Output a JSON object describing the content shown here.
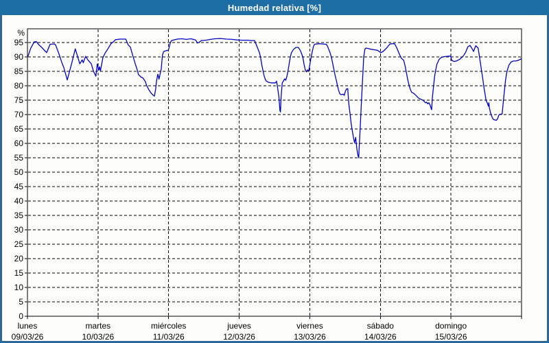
{
  "window": {
    "title": "Humedad relativa [%]"
  },
  "colors": {
    "titlebar_bg": "#1c6ea4",
    "titlebar_text": "#ffffff",
    "frame_border": "#2a689c",
    "page_bg": "#fdfdfb",
    "plot_border": "#000000",
    "gridline": "#000000",
    "tick_label": "#000000",
    "series_line": "#0000c8"
  },
  "chart_data": {
    "type": "line",
    "title": "Humedad relativa [%]",
    "ylabel": "%",
    "xlabel": "",
    "ylim": [
      0,
      100
    ],
    "y_ticks": [
      0,
      5,
      10,
      15,
      20,
      25,
      30,
      35,
      40,
      45,
      50,
      55,
      60,
      65,
      70,
      75,
      80,
      85,
      90,
      95
    ],
    "grid": "dashed",
    "legend_position": "none",
    "x_unit": "hours_since_monday_00h",
    "xlim": [
      0,
      168
    ],
    "day_width_hours": 24,
    "x_days": [
      {
        "name": "lunes",
        "date": "09/03/26"
      },
      {
        "name": "martes",
        "date": "10/03/26"
      },
      {
        "name": "miércoles",
        "date": "11/03/26"
      },
      {
        "name": "jueves",
        "date": "12/03/26"
      },
      {
        "name": "viernes",
        "date": "13/03/26"
      },
      {
        "name": "sábado",
        "date": "14/03/26"
      },
      {
        "name": "domingo",
        "date": "15/03/26"
      }
    ],
    "series": [
      {
        "name": "Humedad relativa",
        "points": [
          [
            0.16,
            90.2
          ],
          [
            1.1,
            93
          ],
          [
            2.26,
            95.2
          ],
          [
            3.03,
            95.3
          ],
          [
            3.8,
            94.3
          ],
          [
            4.97,
            93.2
          ],
          [
            6.14,
            91.9
          ],
          [
            6.53,
            91.5
          ],
          [
            7.7,
            94.4
          ],
          [
            9.26,
            94.5
          ],
          [
            9.64,
            94
          ],
          [
            10.8,
            90.8
          ],
          [
            11.6,
            88.3
          ],
          [
            12.37,
            86.3
          ],
          [
            13.53,
            82
          ],
          [
            15.1,
            88
          ],
          [
            16.26,
            92.8
          ],
          [
            17.8,
            87.6
          ],
          [
            18.6,
            89
          ],
          [
            18.97,
            88
          ],
          [
            19.76,
            90.2
          ],
          [
            20.53,
            89
          ],
          [
            21.7,
            87.6
          ],
          [
            22.47,
            85
          ],
          [
            23.26,
            83.3
          ],
          [
            23.73,
            87.5
          ],
          [
            24.27,
            85.5
          ],
          [
            24.5,
            86.6
          ],
          [
            24.8,
            85.1
          ],
          [
            25.67,
            89.8
          ],
          [
            26.44,
            91.4
          ],
          [
            27.23,
            92.6
          ],
          [
            28.4,
            94.6
          ],
          [
            29.17,
            95.2
          ],
          [
            29.94,
            96
          ],
          [
            31.5,
            96.2
          ],
          [
            33.44,
            96.2
          ],
          [
            34.23,
            94.2
          ],
          [
            35,
            93.4
          ],
          [
            35.77,
            90.6
          ],
          [
            36.56,
            87.9
          ],
          [
            37.33,
            85.5
          ],
          [
            37.73,
            83.9
          ],
          [
            38.5,
            83.1
          ],
          [
            39.27,
            82.7
          ],
          [
            40.06,
            81.5
          ],
          [
            40.44,
            80.3
          ],
          [
            41.23,
            78.7
          ],
          [
            42,
            77.5
          ],
          [
            42.77,
            76.7
          ],
          [
            43.17,
            76.4
          ],
          [
            43.56,
            78.7
          ],
          [
            43.94,
            81.9
          ],
          [
            44.33,
            84
          ],
          [
            44.73,
            82.3
          ],
          [
            45.5,
            85.9
          ],
          [
            45.89,
            90.6
          ],
          [
            46.27,
            91.8
          ],
          [
            47.13,
            92.2
          ],
          [
            47.9,
            92.3
          ],
          [
            48.61,
            95
          ],
          [
            49,
            95.7
          ],
          [
            49.77,
            95.9
          ],
          [
            50.94,
            96.2
          ],
          [
            52.5,
            96.3
          ],
          [
            54.06,
            96.1
          ],
          [
            55.6,
            96.3
          ],
          [
            57.17,
            95.9
          ],
          [
            57.8,
            94.8
          ],
          [
            58.33,
            95
          ],
          [
            59.1,
            95.7
          ],
          [
            60.67,
            95.8
          ],
          [
            62.23,
            96.1
          ],
          [
            63.77,
            96.3
          ],
          [
            65.73,
            96.4
          ],
          [
            67.67,
            96.2
          ],
          [
            69.6,
            96.1
          ],
          [
            71.17,
            95.9
          ],
          [
            73.1,
            95.8
          ],
          [
            74.67,
            95.8
          ],
          [
            76.23,
            95.7
          ],
          [
            77.23,
            95.7
          ],
          [
            78.1,
            93.5
          ],
          [
            78.87,
            91.5
          ],
          [
            79.26,
            89.9
          ],
          [
            79.64,
            87.5
          ],
          [
            80.03,
            85.5
          ],
          [
            80.43,
            83.6
          ],
          [
            80.8,
            82.4
          ],
          [
            81.2,
            81.6
          ],
          [
            81.97,
            81.2
          ],
          [
            82.83,
            81
          ],
          [
            84.3,
            81
          ],
          [
            84.7,
            81.6
          ],
          [
            85.1,
            79
          ],
          [
            85.47,
            76.4
          ],
          [
            85.87,
            71.3
          ],
          [
            86.03,
            70.9
          ],
          [
            86.26,
            76.4
          ],
          [
            86.64,
            81
          ],
          [
            87.03,
            81.6
          ],
          [
            87.43,
            82.4
          ],
          [
            87.8,
            81.9
          ],
          [
            88.2,
            83.2
          ],
          [
            88.6,
            85.2
          ],
          [
            88.97,
            87.5
          ],
          [
            89.37,
            89.9
          ],
          [
            89.76,
            91.5
          ],
          [
            90.53,
            92.7
          ],
          [
            91.3,
            93.3
          ],
          [
            92.1,
            93.3
          ],
          [
            92.87,
            92.1
          ],
          [
            93.64,
            89.9
          ],
          [
            94.03,
            87.5
          ],
          [
            94.43,
            85.7
          ],
          [
            94.8,
            84.8
          ],
          [
            95.27,
            85.5
          ],
          [
            95.67,
            85.2
          ],
          [
            96.44,
            89.9
          ],
          [
            97.23,
            93.6
          ],
          [
            97.61,
            94.4
          ],
          [
            99.17,
            94.6
          ],
          [
            100.33,
            94.5
          ],
          [
            101.5,
            94.4
          ],
          [
            101.9,
            94
          ],
          [
            102.67,
            92.1
          ],
          [
            103.06,
            90.9
          ],
          [
            103.44,
            89.5
          ],
          [
            103.83,
            87.5
          ],
          [
            104.23,
            85.5
          ],
          [
            104.6,
            83.6
          ],
          [
            105,
            82
          ],
          [
            105.4,
            80.1
          ],
          [
            105.77,
            78.5
          ],
          [
            106.17,
            77.3
          ],
          [
            106.56,
            76.9
          ],
          [
            107.33,
            77.1
          ],
          [
            107.73,
            76.7
          ],
          [
            108.1,
            78.1
          ],
          [
            108.5,
            78.9
          ],
          [
            108.9,
            79
          ],
          [
            109.27,
            73.7
          ],
          [
            109.67,
            70.5
          ],
          [
            110.06,
            66.9
          ],
          [
            110.44,
            64.5
          ],
          [
            110.83,
            62.1
          ],
          [
            111.23,
            60.2
          ],
          [
            111.6,
            62.1
          ],
          [
            112,
            58.1
          ],
          [
            112.4,
            55.7
          ],
          [
            112.63,
            55
          ],
          [
            112.77,
            58
          ],
          [
            113.17,
            66
          ],
          [
            113.56,
            74.5
          ],
          [
            113.94,
            82
          ],
          [
            114.33,
            89.9
          ],
          [
            114.73,
            92.7
          ],
          [
            115.1,
            93.1
          ],
          [
            115.9,
            92.9
          ],
          [
            116.67,
            92.7
          ],
          [
            117.83,
            92.5
          ],
          [
            119,
            92.3
          ],
          [
            120.17,
            91.5
          ],
          [
            120.94,
            91.9
          ],
          [
            122.1,
            93.1
          ],
          [
            123.27,
            94.5
          ],
          [
            124.13,
            94.6
          ],
          [
            124.83,
            94.6
          ],
          [
            125.6,
            93.1
          ],
          [
            126.4,
            91.1
          ],
          [
            126.77,
            90.3
          ],
          [
            127.17,
            89.5
          ],
          [
            127.56,
            89.2
          ],
          [
            127.94,
            88.8
          ],
          [
            128.33,
            87.2
          ],
          [
            128.73,
            85.2
          ],
          [
            129.1,
            83.2
          ],
          [
            129.5,
            81.2
          ],
          [
            129.9,
            79.7
          ],
          [
            130.27,
            78.5
          ],
          [
            130.67,
            77.7
          ],
          [
            131.44,
            77.3
          ],
          [
            132.23,
            76.5
          ],
          [
            133,
            75.7
          ],
          [
            133.77,
            75.3
          ],
          [
            134.56,
            74.9
          ],
          [
            135.33,
            74.1
          ],
          [
            135.73,
            74.3
          ],
          [
            136.1,
            73.7
          ],
          [
            136.5,
            74.1
          ],
          [
            136.9,
            73.3
          ],
          [
            137.27,
            72.1
          ],
          [
            137.43,
            71.7
          ],
          [
            137.67,
            75.7
          ],
          [
            138.06,
            79.7
          ],
          [
            138.44,
            83.2
          ],
          [
            138.83,
            85.6
          ],
          [
            139.23,
            87.5
          ],
          [
            139.6,
            88.3
          ],
          [
            140,
            89.2
          ],
          [
            140.77,
            89.8
          ],
          [
            141.56,
            90.1
          ],
          [
            142.73,
            90.2
          ],
          [
            143.9,
            90.3
          ],
          [
            144.27,
            88.8
          ],
          [
            145.06,
            88.4
          ],
          [
            145.83,
            88.6
          ],
          [
            147,
            89.2
          ],
          [
            148.17,
            90.3
          ],
          [
            148.94,
            91.5
          ],
          [
            149.73,
            93.5
          ],
          [
            150.5,
            94
          ],
          [
            151.27,
            92.7
          ],
          [
            151.67,
            91.9
          ],
          [
            152.44,
            93.9
          ],
          [
            153.23,
            93.1
          ],
          [
            153.6,
            90.7
          ],
          [
            154,
            88
          ],
          [
            154.4,
            85.2
          ],
          [
            154.77,
            82.8
          ],
          [
            155.17,
            79.7
          ],
          [
            155.56,
            77.3
          ],
          [
            155.94,
            74.9
          ],
          [
            156.33,
            74.1
          ],
          [
            156.73,
            72.9
          ],
          [
            156.87,
            74.1
          ],
          [
            157.1,
            72.1
          ],
          [
            157.5,
            70.5
          ],
          [
            157.9,
            69.3
          ],
          [
            158.27,
            68.5
          ],
          [
            158.67,
            68.2
          ],
          [
            159.44,
            68
          ],
          [
            159.83,
            68.5
          ],
          [
            160.23,
            69.7
          ],
          [
            160.6,
            70.1
          ],
          [
            161.4,
            70.2
          ],
          [
            161.77,
            74.1
          ],
          [
            162.17,
            78.1
          ],
          [
            162.56,
            82
          ],
          [
            162.93,
            84.4
          ],
          [
            163.33,
            86
          ],
          [
            163.73,
            87.2
          ],
          [
            164.5,
            88.3
          ],
          [
            165.27,
            88.6
          ],
          [
            166.06,
            88.6
          ],
          [
            166.83,
            88.8
          ],
          [
            167.6,
            89.2
          ],
          [
            168,
            89.4
          ]
        ]
      }
    ]
  }
}
